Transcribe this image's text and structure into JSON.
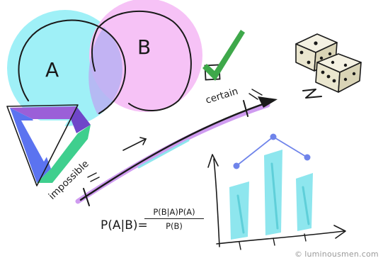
{
  "venn": {
    "set_a_label": "A",
    "set_b_label": "B"
  },
  "scale": {
    "low_label": "impossible",
    "high_label": "certain"
  },
  "formula": {
    "lhs": "P(A|B)=",
    "numerator": "P(B|A)P(A)",
    "denominator": "P(B)"
  },
  "credit": {
    "mark": "©",
    "text": "luminousmen.com"
  },
  "chart_data": {
    "type": "bar",
    "categories": [
      "",
      "",
      ""
    ],
    "values": [
      2,
      3,
      2
    ],
    "line_values": [
      2,
      3,
      2
    ],
    "title": "",
    "xlabel": "",
    "ylabel": ""
  },
  "colors": {
    "cyan": "#9ff0f7",
    "pink": "#f6c2f6",
    "purple": "#9b5fd8",
    "green": "#3fcf8e",
    "blue": "#5b73f0",
    "bar": "#8ee6ee",
    "bar_shade": "#5fcfd9",
    "dot": "#6f84ea",
    "tick_green": "#3ea84a"
  },
  "icons": {
    "dice": "dice-icon",
    "check": "checkmark-icon",
    "triangle": "impossible-triangle-icon"
  }
}
